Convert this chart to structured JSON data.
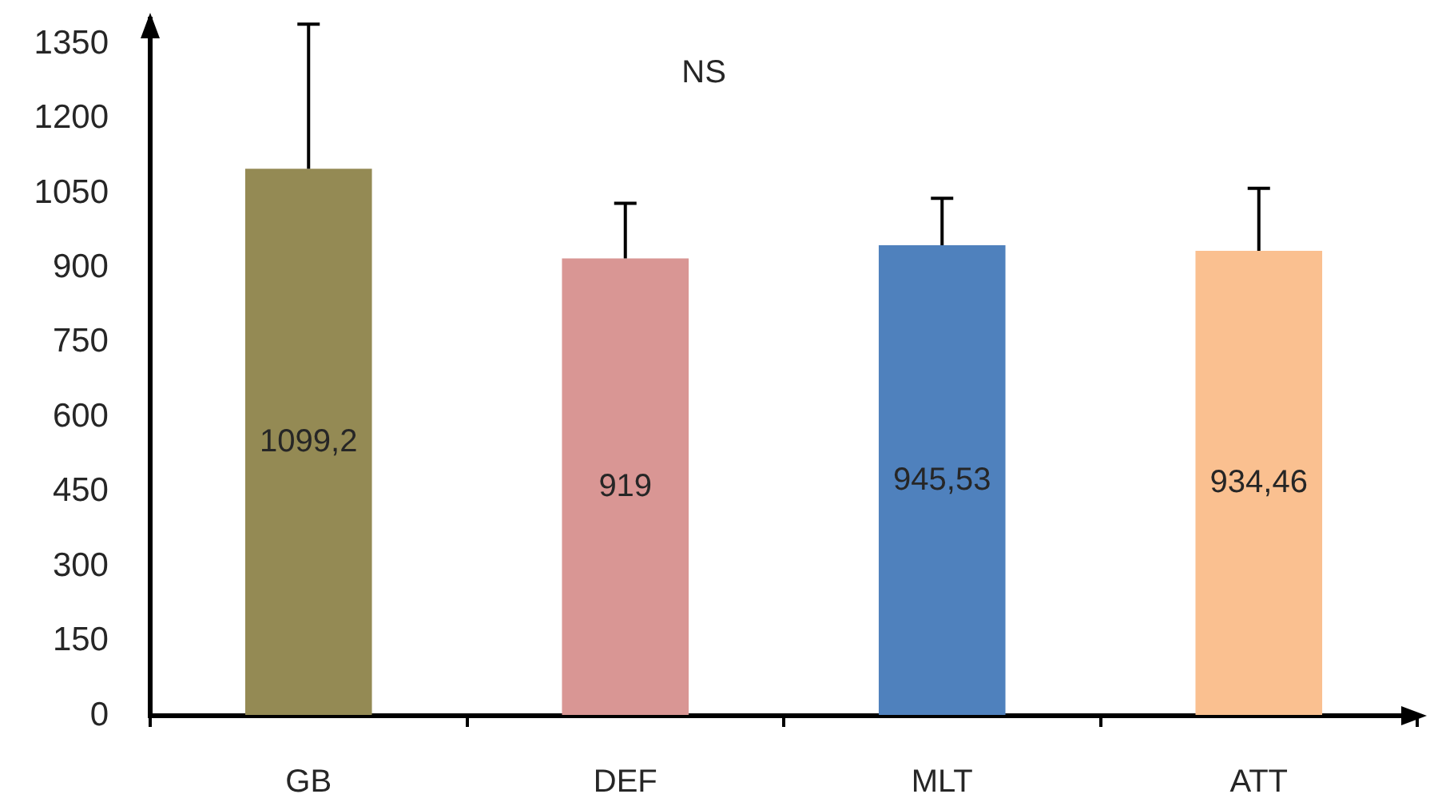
{
  "chart_data": {
    "type": "bar",
    "categories": [
      "GB",
      "DEF",
      "MLT",
      "ATT"
    ],
    "values": [
      1099.2,
      919,
      945.53,
      934.46
    ],
    "colors": [
      "#948a54",
      "#d99694",
      "#4f81bd",
      "#fac090"
    ],
    "errors": [
      [
        1099.2,
        1390
      ],
      [
        919,
        1030
      ],
      [
        945.53,
        1040
      ],
      [
        934.46,
        1060
      ]
    ],
    "value_labels": [
      "1099,2",
      "919",
      "945,53",
      "934,46"
    ],
    "ylim": [
      0,
      1400
    ],
    "yticks": [
      0,
      150,
      300,
      450,
      600,
      750,
      900,
      1050,
      1200,
      1350
    ],
    "annotations": [
      "NS"
    ]
  }
}
